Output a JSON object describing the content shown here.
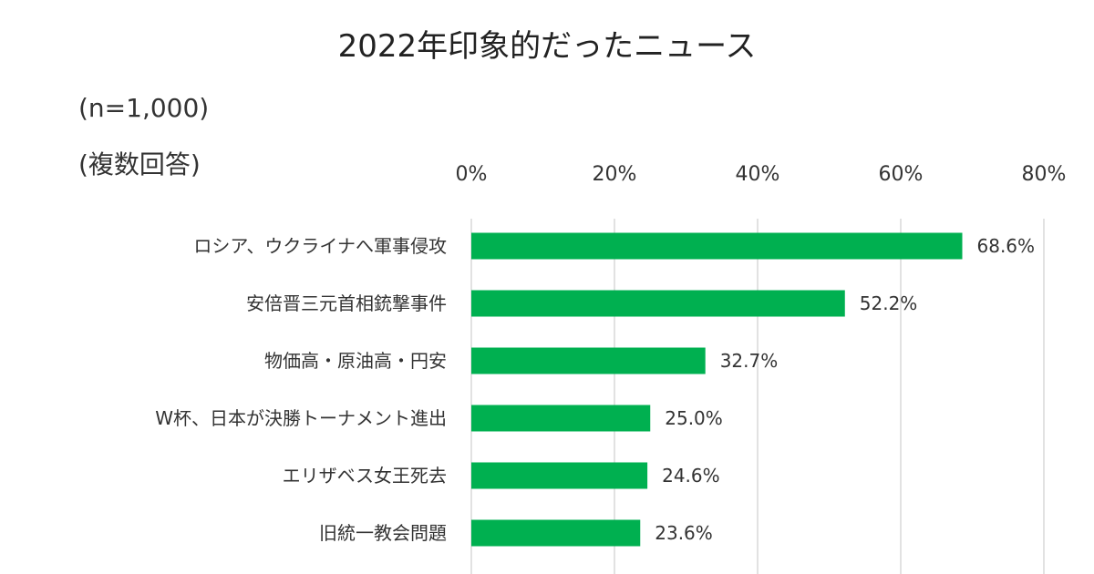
{
  "chart_data": {
    "type": "bar",
    "orientation": "horizontal",
    "title": "2022年印象的だったニュース",
    "notes": [
      "(n=1,000)",
      "(複数回答)"
    ],
    "categories": [
      "ロシア、ウクライナへ軍事侵攻",
      "安倍晋三元首相銃撃事件",
      "物価高・原油高・円安",
      "W杯、日本が決勝トーナメント進出",
      "エリザベス女王死去",
      "旧統一教会問題"
    ],
    "values": [
      68.6,
      52.2,
      32.7,
      25.0,
      24.6,
      23.6
    ],
    "data_labels": [
      "68.6%",
      "52.2%",
      "32.7%",
      "25.0%",
      "24.6%",
      "23.6%"
    ],
    "x_ticks": [
      "0%",
      "20%",
      "40%",
      "60%",
      "80%"
    ],
    "xlim": [
      0,
      80
    ],
    "x_axis_position": "top",
    "grid": true,
    "bar_color": "#00B050"
  }
}
